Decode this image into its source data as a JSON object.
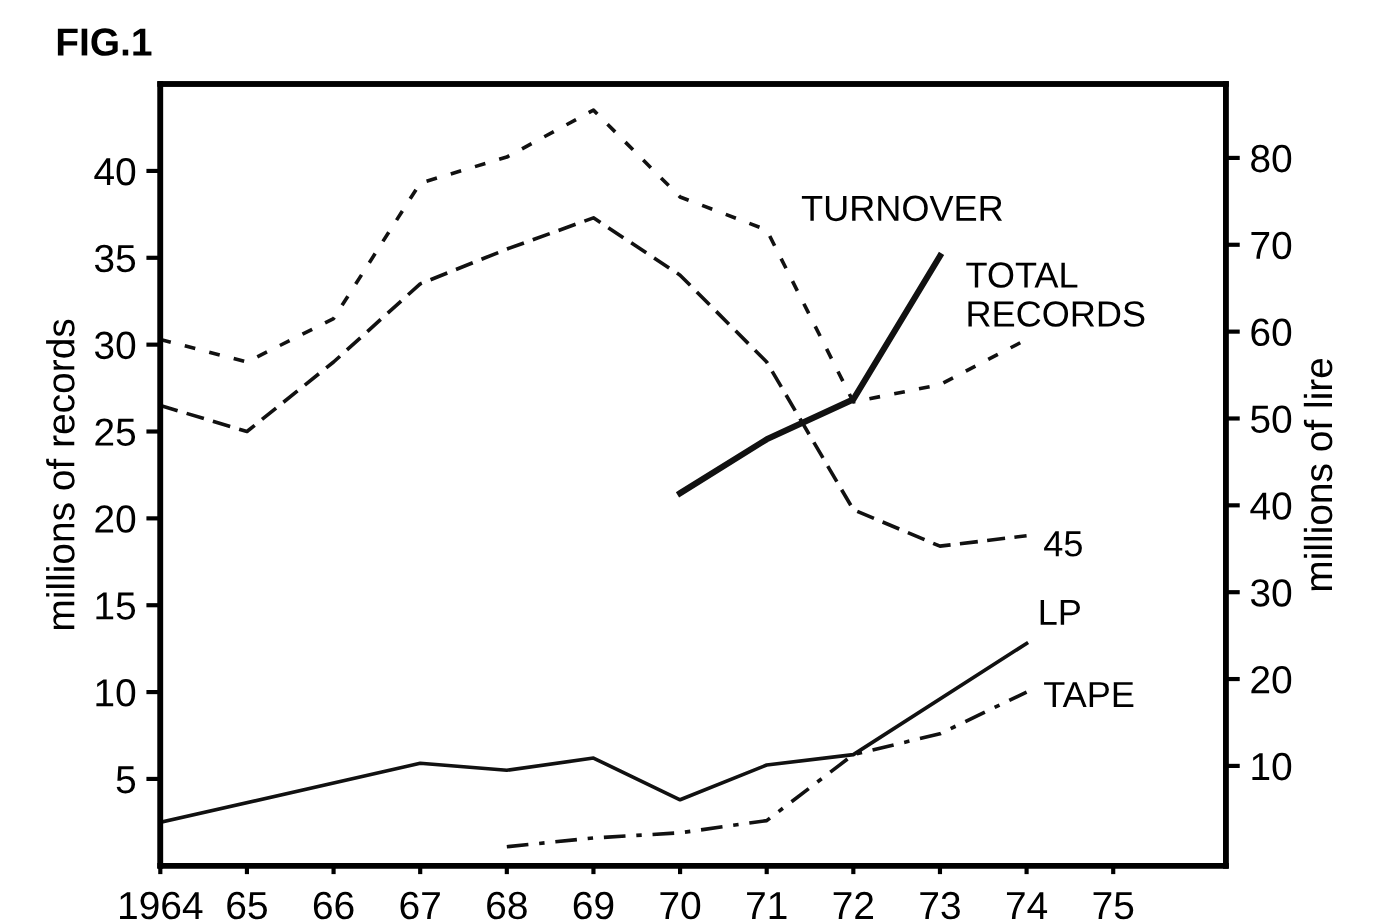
{
  "chart_data": {
    "type": "line",
    "title": "FIG.1",
    "ylabel": "millions of records",
    "y2label": "millions of lire",
    "xlim": [
      1964,
      1976.3
    ],
    "xticks": [
      {
        "value": 1964,
        "label": "1964"
      },
      {
        "value": 1965,
        "label": "65"
      },
      {
        "value": 1966,
        "label": "66"
      },
      {
        "value": 1967,
        "label": "67"
      },
      {
        "value": 1968,
        "label": "68"
      },
      {
        "value": 1969,
        "label": "69"
      },
      {
        "value": 1970,
        "label": "70"
      },
      {
        "value": 1971,
        "label": "71"
      },
      {
        "value": 1972,
        "label": "72"
      },
      {
        "value": 1973,
        "label": "73"
      },
      {
        "value": 1974,
        "label": "74"
      },
      {
        "value": 1975,
        "label": "75"
      }
    ],
    "ylim": [
      0,
      45
    ],
    "yticks": [
      5,
      10,
      15,
      20,
      25,
      30,
      35,
      40
    ],
    "y2lim": [
      -1.5,
      88.5
    ],
    "y2ticks": [
      10,
      20,
      30,
      40,
      50,
      60,
      70,
      80
    ],
    "grid": false,
    "legend": false,
    "series": [
      {
        "name": "TOTAL RECORDS",
        "color": "#111111",
        "line_style": "dotted",
        "x": [
          1964,
          1965,
          1966,
          1967,
          1968,
          1969,
          1970,
          1971,
          1972,
          1973,
          1974
        ],
        "values": [
          30.3,
          29,
          31.5,
          39.3,
          40.8,
          43.5,
          38.5,
          36.6,
          26.7,
          27.7,
          30.3
        ]
      },
      {
        "name": "45",
        "color": "#111111",
        "line_style": "dashed",
        "x": [
          1964,
          1965,
          1966,
          1967,
          1968,
          1969,
          1970,
          1971,
          1972,
          1973,
          1974
        ],
        "values": [
          26.5,
          25,
          29,
          33.5,
          35.5,
          37.3,
          34,
          29,
          20.5,
          18.4,
          19
        ]
      },
      {
        "name": "LP",
        "color": "#111111",
        "line_style": "solid",
        "x": [
          1964,
          1967,
          1968,
          1969,
          1970,
          1971,
          1972,
          1974
        ],
        "values": [
          2.5,
          5.9,
          5.5,
          6.2,
          3.8,
          5.8,
          6.4,
          12.8
        ]
      },
      {
        "name": "TAPE",
        "color": "#111111",
        "line_style": "dashdot",
        "x": [
          1968,
          1969,
          1970,
          1971,
          1972,
          1973,
          1974
        ],
        "values": [
          1.1,
          1.6,
          1.9,
          2.6,
          6.4,
          7.6,
          10
        ]
      },
      {
        "name": "TURNOVER",
        "color": "#111111",
        "line_style": "solid",
        "axis": "y2",
        "x": [
          1970,
          1971,
          1972,
          1973
        ],
        "values": [
          41.4,
          47.6,
          52.2,
          68.7
        ]
      }
    ]
  }
}
